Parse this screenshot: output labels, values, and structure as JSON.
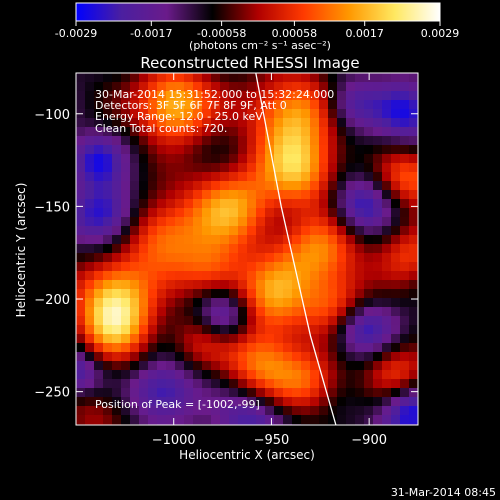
{
  "colorbar": {
    "tick_labels": [
      "-0.0029",
      "-0.0017",
      "-0.00058",
      "0.00058",
      "0.0017",
      "0.0029"
    ],
    "tick_values": [
      -0.0029,
      -0.0017,
      -0.00058,
      0.00058,
      0.0017,
      0.0029
    ],
    "range": [
      -0.0029,
      0.0029
    ],
    "units": "(photons cm⁻² s⁻¹ asec⁻²)",
    "colors": [
      "#0000ff",
      "#4b1fa0",
      "#6a1b8a",
      "#000000",
      "#b00000",
      "#ff3a00",
      "#ff9800",
      "#ffe860",
      "#ffffff"
    ]
  },
  "chart_data": {
    "type": "heatmap",
    "title": "Reconstructed RHESSI Image",
    "xlabel": "Heliocentric X (arcsec)",
    "ylabel": "Heliocentric Y (arcsec)",
    "xlim": [
      -1050,
      -875
    ],
    "ylim": [
      -268,
      -78
    ],
    "x_ticks": [
      -1000,
      -950,
      -900
    ],
    "x_tick_labels": [
      "−1000",
      "−950",
      "−900"
    ],
    "y_ticks": [
      -100,
      -150,
      -200,
      -250
    ],
    "y_tick_labels": [
      "−100",
      "−150",
      "−200",
      "−250"
    ],
    "annotations": [
      "30-Mar-2014 15:31:52.000 to 15:32:24.000",
      "Detectors: 3F 5F 6F 7F 8F 9F, Att 0",
      "Energy Range: 12.0 - 25.0 keV",
      "Clean    Total counts: 720.",
      "Position of Peak = [-1002,-99]"
    ],
    "peak": {
      "x": -1002,
      "y": -99
    },
    "limb_curve": [
      [
        -958,
        -78
      ],
      [
        -945,
        -150
      ],
      [
        -930,
        -220
      ],
      [
        -917,
        -268
      ]
    ],
    "sources": [
      {
        "x": -1000,
        "y": -95,
        "amp": 1.0,
        "w": 14
      },
      {
        "x": -940,
        "y": -100,
        "amp": 0.85,
        "w": 16
      },
      {
        "x": -935,
        "y": -130,
        "amp": 0.8,
        "w": 14
      },
      {
        "x": -970,
        "y": -150,
        "amp": 0.8,
        "w": 16
      },
      {
        "x": -1005,
        "y": -165,
        "amp": 0.7,
        "w": 15
      },
      {
        "x": -925,
        "y": -175,
        "amp": 0.75,
        "w": 15
      },
      {
        "x": -980,
        "y": -185,
        "amp": 0.55,
        "w": 12
      },
      {
        "x": -1030,
        "y": -195,
        "amp": 0.75,
        "w": 14
      },
      {
        "x": -950,
        "y": -200,
        "amp": 0.75,
        "w": 15
      },
      {
        "x": -915,
        "y": -205,
        "amp": 0.6,
        "w": 12
      },
      {
        "x": -1030,
        "y": -215,
        "amp": 0.8,
        "w": 14
      },
      {
        "x": -985,
        "y": -220,
        "amp": 0.55,
        "w": 12
      },
      {
        "x": -955,
        "y": -235,
        "amp": 0.7,
        "w": 14
      },
      {
        "x": -930,
        "y": -245,
        "amp": 0.55,
        "w": 12
      },
      {
        "x": -885,
        "y": -240,
        "amp": 0.55,
        "w": 12
      },
      {
        "x": -878,
        "y": -135,
        "amp": 0.6,
        "w": 12
      },
      {
        "x": -878,
        "y": -175,
        "amp": 0.5,
        "w": 12
      },
      {
        "x": -1040,
        "y": -260,
        "amp": 0.35,
        "w": 12
      },
      {
        "x": -1040,
        "y": -125,
        "amp": -0.5,
        "w": 10
      },
      {
        "x": -1035,
        "y": -155,
        "amp": -0.7,
        "w": 12
      },
      {
        "x": -975,
        "y": -210,
        "amp": -0.85,
        "w": 11
      },
      {
        "x": -905,
        "y": -150,
        "amp": -0.6,
        "w": 11
      },
      {
        "x": -905,
        "y": -215,
        "amp": -0.7,
        "w": 11
      },
      {
        "x": -1005,
        "y": -250,
        "amp": -0.6,
        "w": 12
      },
      {
        "x": -960,
        "y": -265,
        "amp": -0.5,
        "w": 12
      },
      {
        "x": -880,
        "y": -260,
        "amp": -0.7,
        "w": 11
      },
      {
        "x": -880,
        "y": -100,
        "amp": -0.55,
        "w": 12
      },
      {
        "x": -910,
        "y": -95,
        "amp": -0.5,
        "w": 10
      },
      {
        "x": -1050,
        "y": -240,
        "amp": -0.55,
        "w": 10
      }
    ]
  },
  "footer": {
    "timestamp": "31-Mar-2014 08:45"
  }
}
